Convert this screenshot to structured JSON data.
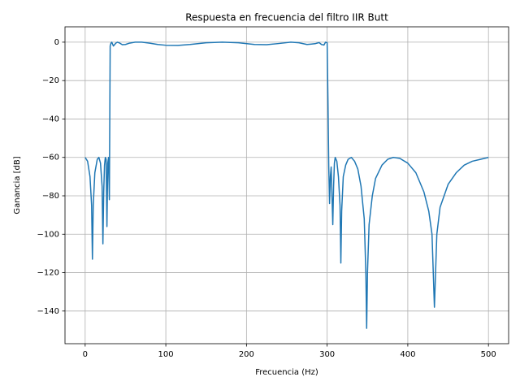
{
  "chart_data": {
    "type": "line",
    "title": "Respuesta en frecuencia del filtro IIR Butt",
    "x_label": "Frecuencia (Hz)",
    "y_label": "Ganancia [dB]",
    "color": "#1f77b4",
    "grid": true,
    "xlim": [
      -25,
      525
    ],
    "ylim": [
      -157,
      8
    ],
    "xticks": [
      0,
      100,
      200,
      300,
      400,
      500
    ],
    "yticks": [
      {
        "value": -140,
        "label": "−140"
      },
      {
        "value": -120,
        "label": "−120"
      },
      {
        "value": -100,
        "label": "−100"
      },
      {
        "value": -80,
        "label": "−80"
      },
      {
        "value": -60,
        "label": "−60"
      },
      {
        "value": -40,
        "label": "−40"
      },
      {
        "value": -20,
        "label": "−20"
      },
      0
    ],
    "x": [
      0,
      3,
      6,
      8,
      9,
      10,
      12,
      15,
      17,
      19,
      21,
      22,
      23,
      24,
      25,
      26,
      27,
      28,
      29,
      30,
      31,
      32,
      33,
      35,
      38,
      40,
      43,
      46,
      50,
      55,
      62,
      70,
      80,
      90,
      100,
      115,
      130,
      150,
      170,
      190,
      210,
      225,
      240,
      255,
      265,
      275,
      285,
      290,
      293,
      296,
      298,
      300,
      301,
      302,
      303,
      304,
      305,
      306,
      307,
      308,
      309,
      310,
      312,
      314,
      316,
      317,
      318,
      320,
      323,
      326,
      330,
      334,
      338,
      342,
      346,
      348,
      349,
      350,
      352,
      356,
      360,
      368,
      375,
      382,
      390,
      400,
      410,
      420,
      426,
      430,
      433,
      436,
      440,
      450,
      460,
      470,
      480,
      490,
      500
    ],
    "values": [
      -60,
      -62,
      -70,
      -85,
      -113,
      -85,
      -68,
      -61,
      -60,
      -63,
      -75,
      -105,
      -78,
      -64,
      -60,
      -61,
      -96,
      -63,
      -60,
      -82,
      -2,
      -0.5,
      0,
      -2,
      -0.5,
      0,
      -0.5,
      -1.3,
      -1.2,
      -0.5,
      0,
      0,
      -0.5,
      -1.2,
      -1.6,
      -1.7,
      -1.2,
      -0.3,
      0,
      -0.3,
      -1.2,
      -1.3,
      -0.7,
      0,
      -0.3,
      -1.2,
      -0.8,
      -0.2,
      -1.2,
      -1.5,
      0,
      -0.3,
      -30,
      -65,
      -84,
      -70,
      -65,
      -80,
      -95,
      -75,
      -63,
      -60,
      -62,
      -70,
      -85,
      -115,
      -88,
      -70,
      -64,
      -61,
      -60,
      -62,
      -66,
      -75,
      -92,
      -120,
      -149,
      -120,
      -95,
      -80,
      -71,
      -64,
      -61,
      -60,
      -60.5,
      -63,
      -68,
      -78,
      -88,
      -100,
      -138,
      -100,
      -86,
      -74,
      -68,
      -64,
      -62,
      -61,
      -60
    ]
  }
}
